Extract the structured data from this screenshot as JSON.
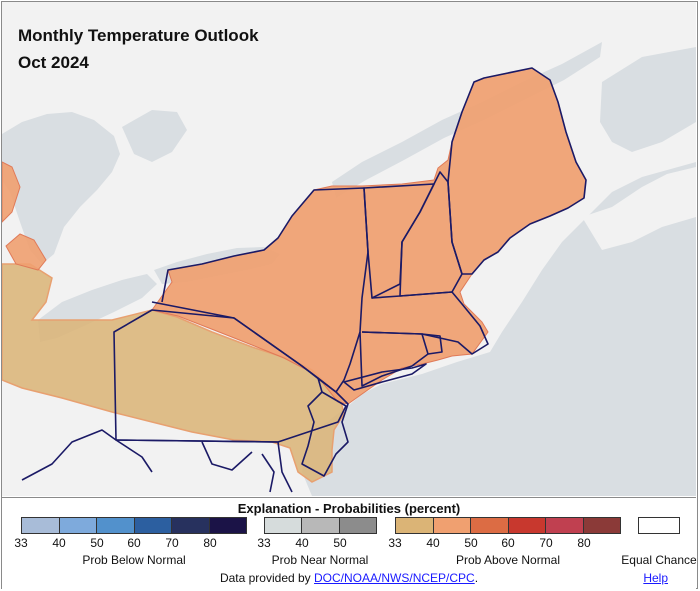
{
  "title": {
    "line1": "Monthly Temperature Outlook",
    "line2": "Oct 2024"
  },
  "legend": {
    "heading": "Explanation - Probabilities (percent)",
    "below": {
      "label": "Prob Below Normal",
      "ticks": [
        "33",
        "40",
        "50",
        "60",
        "70",
        "80"
      ],
      "colors": [
        "#a8bcd8",
        "#7eaadc",
        "#5291cc",
        "#2c5fa0",
        "#27315e",
        "#1b1347"
      ]
    },
    "near": {
      "label": "Prob Near Normal",
      "ticks": [
        "33",
        "40",
        "50"
      ],
      "colors": [
        "#d6dcdc",
        "#b8b8b8",
        "#8c8c8c"
      ]
    },
    "above": {
      "label": "Prob Above Normal",
      "ticks": [
        "33",
        "40",
        "50",
        "60",
        "70",
        "80"
      ],
      "colors": [
        "#dbb476",
        "#f0a070",
        "#dc6c44",
        "#c8382e",
        "#c04050",
        "#8b3a38"
      ]
    },
    "equal_chance": "Equal Chance"
  },
  "footer": {
    "prefix": "Data provided by ",
    "link": "DOC/NOAA/NWS/NCEP/CPC",
    "suffix": ".",
    "help": "Help"
  },
  "map_colors": {
    "ocean": "#d9dee2",
    "land": "#f2f2f2",
    "above_40": "#f0a070",
    "above_33": "#dbb476",
    "state_border": "#1b1a66"
  }
}
